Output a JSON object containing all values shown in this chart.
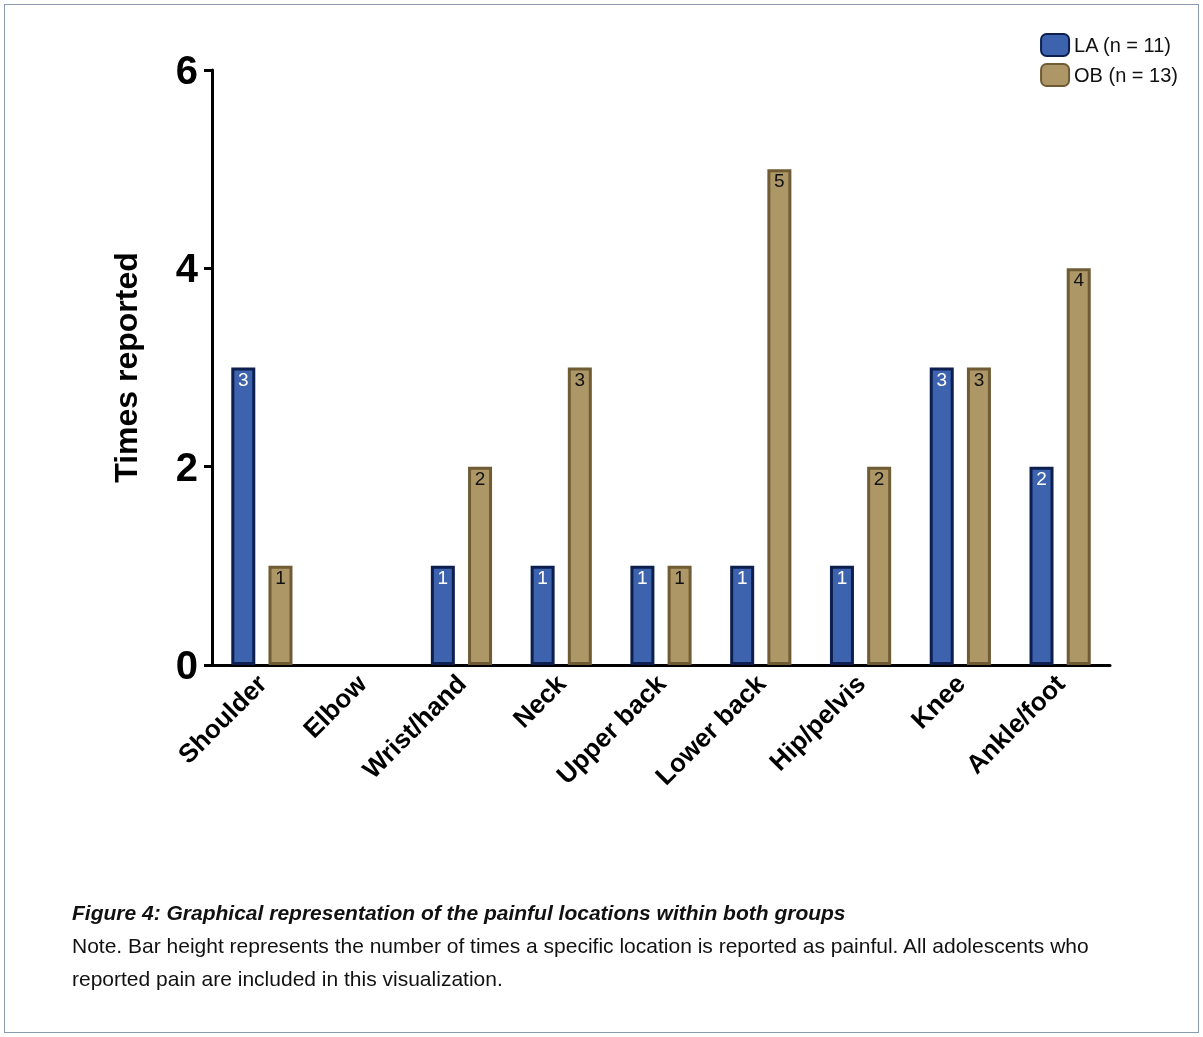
{
  "chart_data": {
    "type": "bar",
    "title": "Figure 4: Graphical representation of the painful locations within both groups",
    "ylabel": "Times reported",
    "categories": [
      "Shoulder",
      "Elbow",
      "Wrist/hand",
      "Neck",
      "Upper back",
      "Lower back",
      "Hip/pelvis",
      "Knee",
      "Ankle/foot"
    ],
    "series": [
      {
        "name": "LA (n = 11)",
        "color": "#3d62ae",
        "values": [
          3,
          0,
          1,
          1,
          1,
          1,
          1,
          3,
          2
        ],
        "value_labels": [
          "3",
          null,
          "1",
          "1",
          "1",
          "1",
          "1",
          "3",
          "2"
        ]
      },
      {
        "name": "OB (n = 13)",
        "color": "#ad9767",
        "values": [
          1,
          0,
          2,
          3,
          1,
          5,
          2,
          3,
          4
        ],
        "value_labels": [
          "1",
          null,
          "2",
          "3",
          "1",
          "5",
          "2",
          "3",
          "4"
        ]
      }
    ],
    "ylim": [
      0,
      6
    ],
    "yticks": [
      0,
      2,
      4,
      6
    ],
    "grid": false,
    "legend": "top right",
    "annotations": [
      "Note. Bar height represents the number of times a specific location is reported as painful. All adolescents who reported pain are included in this visualization."
    ]
  }
}
